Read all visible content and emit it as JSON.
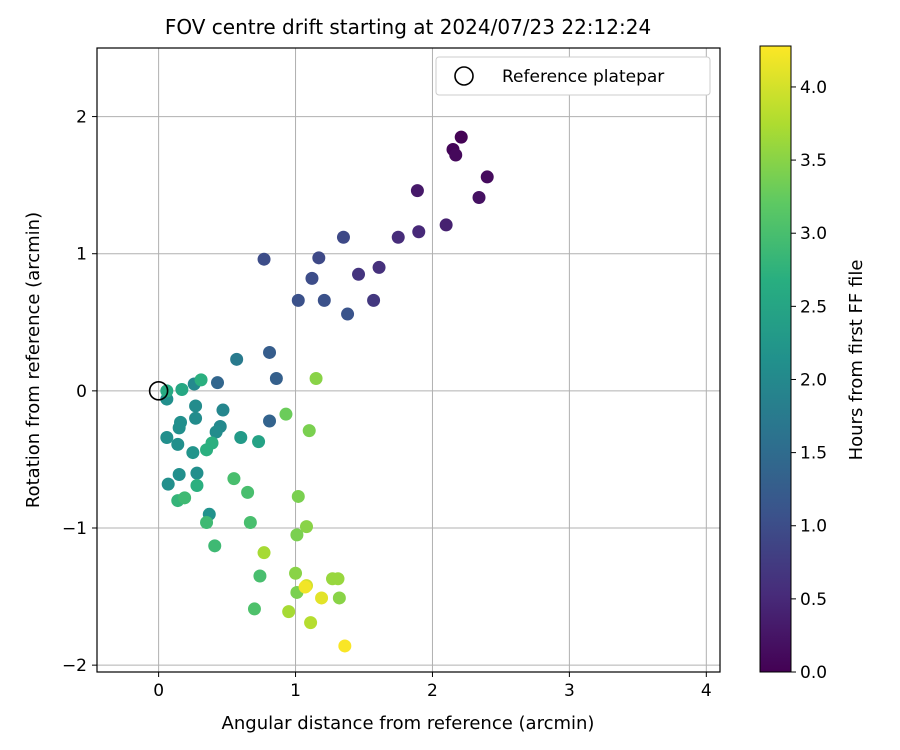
{
  "chart_data": {
    "type": "scatter",
    "title": "FOV centre drift starting at 2024/07/23 22:12:24",
    "xlabel": "Angular distance from reference (arcmin)",
    "ylabel": "Rotation from reference (arcmin)",
    "xlim": [
      -0.45,
      4.1
    ],
    "ylim": [
      -2.05,
      2.5
    ],
    "xticks": [
      0,
      1,
      2,
      3,
      4
    ],
    "yticks": [
      -2,
      -1,
      0,
      1,
      2
    ],
    "grid": true,
    "legend": {
      "placement": "top-right",
      "entries": [
        "Reference platepar"
      ]
    },
    "reference_point": {
      "x": 0,
      "y": 0,
      "label": "Reference platepar"
    },
    "colorbar": {
      "label": "Hours from first FF file",
      "colormap": "viridis",
      "range": [
        0,
        4.28
      ],
      "ticks": [
        "0.0",
        "0.5",
        "1.0",
        "1.5",
        "2.0",
        "2.5",
        "3.0",
        "3.5",
        "4.0"
      ]
    },
    "points": [
      {
        "x": 2.21,
        "y": 1.85,
        "c": 0.02
      },
      {
        "x": 2.15,
        "y": 1.76,
        "c": 0.05
      },
      {
        "x": 2.17,
        "y": 1.72,
        "c": 0.1
      },
      {
        "x": 2.4,
        "y": 1.56,
        "c": 0.12
      },
      {
        "x": 2.34,
        "y": 1.41,
        "c": 0.2
      },
      {
        "x": 1.89,
        "y": 1.46,
        "c": 0.3
      },
      {
        "x": 2.1,
        "y": 1.21,
        "c": 0.4
      },
      {
        "x": 1.9,
        "y": 1.16,
        "c": 0.5
      },
      {
        "x": 1.75,
        "y": 1.12,
        "c": 0.55
      },
      {
        "x": 1.61,
        "y": 0.9,
        "c": 0.6
      },
      {
        "x": 1.46,
        "y": 0.85,
        "c": 0.65
      },
      {
        "x": 1.57,
        "y": 0.66,
        "c": 0.7
      },
      {
        "x": 1.35,
        "y": 1.12,
        "c": 0.95
      },
      {
        "x": 1.17,
        "y": 0.97,
        "c": 0.95
      },
      {
        "x": 0.77,
        "y": 0.96,
        "c": 1.0
      },
      {
        "x": 1.12,
        "y": 0.82,
        "c": 1.0
      },
      {
        "x": 1.02,
        "y": 0.66,
        "c": 1.05
      },
      {
        "x": 1.21,
        "y": 0.66,
        "c": 1.05
      },
      {
        "x": 1.38,
        "y": 0.56,
        "c": 1.1
      },
      {
        "x": 0.81,
        "y": 0.28,
        "c": 1.25
      },
      {
        "x": 0.86,
        "y": 0.09,
        "c": 1.3
      },
      {
        "x": 0.81,
        "y": -0.22,
        "c": 1.35
      },
      {
        "x": 0.43,
        "y": 0.06,
        "c": 1.4
      },
      {
        "x": 0.57,
        "y": 0.23,
        "c": 1.75
      },
      {
        "x": 0.47,
        "y": -0.14,
        "c": 1.95
      },
      {
        "x": 0.45,
        "y": -0.26,
        "c": 2.0
      },
      {
        "x": 0.42,
        "y": -0.3,
        "c": 2.05
      },
      {
        "x": 0.26,
        "y": 0.05,
        "c": 2.0
      },
      {
        "x": 0.27,
        "y": -0.11,
        "c": 2.05
      },
      {
        "x": 0.27,
        "y": -0.2,
        "c": 2.05
      },
      {
        "x": 0.16,
        "y": -0.23,
        "c": 2.1
      },
      {
        "x": 0.15,
        "y": -0.27,
        "c": 2.1
      },
      {
        "x": 0.06,
        "y": -0.06,
        "c": 2.1
      },
      {
        "x": 0.06,
        "y": -0.34,
        "c": 2.1
      },
      {
        "x": 0.14,
        "y": -0.39,
        "c": 2.1
      },
      {
        "x": 0.28,
        "y": -0.6,
        "c": 2.1
      },
      {
        "x": 0.15,
        "y": -0.61,
        "c": 2.1
      },
      {
        "x": 0.07,
        "y": -0.68,
        "c": 2.1
      },
      {
        "x": 0.37,
        "y": -0.9,
        "c": 2.15
      },
      {
        "x": 0.25,
        "y": -0.45,
        "c": 2.2
      },
      {
        "x": 0.6,
        "y": -0.34,
        "c": 2.3
      },
      {
        "x": 0.73,
        "y": -0.37,
        "c": 2.45
      },
      {
        "x": 0.17,
        "y": 0.01,
        "c": 2.55
      },
      {
        "x": 0.06,
        "y": 0.0,
        "c": 2.6
      },
      {
        "x": 0.31,
        "y": 0.08,
        "c": 2.7
      },
      {
        "x": 0.39,
        "y": -0.38,
        "c": 2.7
      },
      {
        "x": 0.35,
        "y": -0.43,
        "c": 2.7
      },
      {
        "x": 0.28,
        "y": -0.69,
        "c": 2.7
      },
      {
        "x": 0.14,
        "y": -0.8,
        "c": 2.8
      },
      {
        "x": 0.19,
        "y": -0.78,
        "c": 2.9
      },
      {
        "x": 0.35,
        "y": -0.96,
        "c": 2.9
      },
      {
        "x": 0.41,
        "y": -1.13,
        "c": 2.9
      },
      {
        "x": 0.55,
        "y": -0.64,
        "c": 3.0
      },
      {
        "x": 0.65,
        "y": -0.74,
        "c": 3.0
      },
      {
        "x": 0.67,
        "y": -0.96,
        "c": 3.0
      },
      {
        "x": 0.74,
        "y": -1.35,
        "c": 3.0
      },
      {
        "x": 0.7,
        "y": -1.59,
        "c": 3.05
      },
      {
        "x": 0.93,
        "y": -0.17,
        "c": 3.3
      },
      {
        "x": 1.1,
        "y": -0.29,
        "c": 3.4
      },
      {
        "x": 1.15,
        "y": 0.09,
        "c": 3.5
      },
      {
        "x": 1.02,
        "y": -0.77,
        "c": 3.4
      },
      {
        "x": 1.08,
        "y": -0.99,
        "c": 3.5
      },
      {
        "x": 1.01,
        "y": -1.05,
        "c": 3.4
      },
      {
        "x": 0.77,
        "y": -1.18,
        "c": 3.7
      },
      {
        "x": 1.0,
        "y": -1.33,
        "c": 3.5
      },
      {
        "x": 1.01,
        "y": -1.47,
        "c": 3.4
      },
      {
        "x": 0.95,
        "y": -1.61,
        "c": 3.7
      },
      {
        "x": 1.27,
        "y": -1.37,
        "c": 3.6
      },
      {
        "x": 1.31,
        "y": -1.37,
        "c": 3.6
      },
      {
        "x": 1.32,
        "y": -1.51,
        "c": 3.5
      },
      {
        "x": 1.11,
        "y": -1.69,
        "c": 3.8
      },
      {
        "x": 1.08,
        "y": -1.42,
        "c": 4.0
      },
      {
        "x": 1.07,
        "y": -1.43,
        "c": 4.2
      },
      {
        "x": 1.19,
        "y": -1.51,
        "c": 4.1
      },
      {
        "x": 1.36,
        "y": -1.86,
        "c": 4.25
      }
    ]
  }
}
